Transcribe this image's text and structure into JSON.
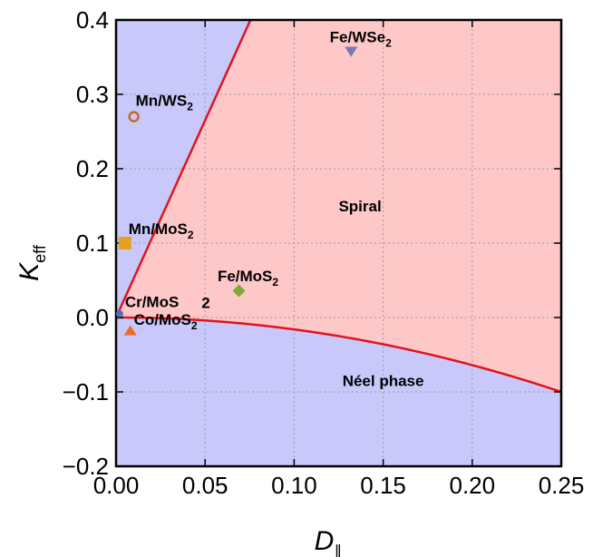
{
  "chart_data": {
    "type": "scatter",
    "xlabel_main": "D",
    "xlabel_sub": "∥",
    "ylabel_main": "K",
    "ylabel_sub": "eff",
    "xlim": [
      0,
      0.25
    ],
    "ylim": [
      -0.2,
      0.4
    ],
    "x_ticks": [
      {
        "v": 0,
        "label": "0.00"
      },
      {
        "v": 0.05,
        "label": "0.05"
      },
      {
        "v": 0.1,
        "label": "0.10"
      },
      {
        "v": 0.15,
        "label": "0.15"
      },
      {
        "v": 0.2,
        "label": "0.20"
      },
      {
        "v": 0.25,
        "label": "0.25"
      }
    ],
    "y_ticks": [
      {
        "v": -0.2,
        "label": "−0.2"
      },
      {
        "v": -0.1,
        "label": "−0.1"
      },
      {
        "v": 0.0,
        "label": "0.0"
      },
      {
        "v": 0.1,
        "label": "0.1"
      },
      {
        "v": 0.2,
        "label": "0.2"
      },
      {
        "v": 0.3,
        "label": "0.3"
      },
      {
        "v": 0.4,
        "label": "0.4"
      }
    ],
    "grid": true,
    "regions": [
      {
        "label": "Spiral",
        "color": "#ffc8c8",
        "label_x": 0.137,
        "label_y": 0.15
      },
      {
        "label": "Néel phase",
        "color": "#c8c8fa",
        "label_x": 0.15,
        "label_y": -0.085
      }
    ],
    "boundaries": [
      {
        "name": "upper",
        "color": "#e0141e",
        "slope": 5.3
      },
      {
        "name": "lower",
        "color": "#e0141e",
        "coef": -1.6
      }
    ],
    "points": [
      {
        "name": "Fe/WSe",
        "sub": "2",
        "x": 0.132,
        "y": 0.358,
        "marker": "triangle-down",
        "color": "#7b78b8",
        "label_x": 0.12,
        "label_y": 0.37
      },
      {
        "name": "Mn/WS",
        "sub": "2",
        "x": 0.01,
        "y": 0.27,
        "marker": "open-circle",
        "color": "#c56b2a",
        "label_x": 0.011,
        "label_y": 0.285
      },
      {
        "name": "Mn/MoS",
        "sub": "2",
        "x": 0.005,
        "y": 0.1,
        "marker": "square",
        "color": "#e6a020",
        "label_x": 0.007,
        "label_y": 0.112
      },
      {
        "name": "Fe/MoS",
        "sub": "2",
        "x": 0.069,
        "y": 0.036,
        "marker": "diamond",
        "color": "#7faa35",
        "label_x": 0.057,
        "label_y": 0.049
      },
      {
        "name": "Cr/MoS",
        "sub": "",
        "x": 0.002,
        "y": 0.005,
        "marker": "circle",
        "color": "#4a72b5",
        "label_x": 0.005,
        "label_y": 0.014
      },
      {
        "name": "Co/MoS",
        "sub": "2",
        "x": 0.008,
        "y": -0.018,
        "marker": "triangle-up",
        "color": "#ee6a2c",
        "label_x": 0.01,
        "label_y": -0.01
      }
    ],
    "extra_labels": [
      {
        "text": "2",
        "x": 0.048,
        "y": 0.013
      }
    ]
  }
}
